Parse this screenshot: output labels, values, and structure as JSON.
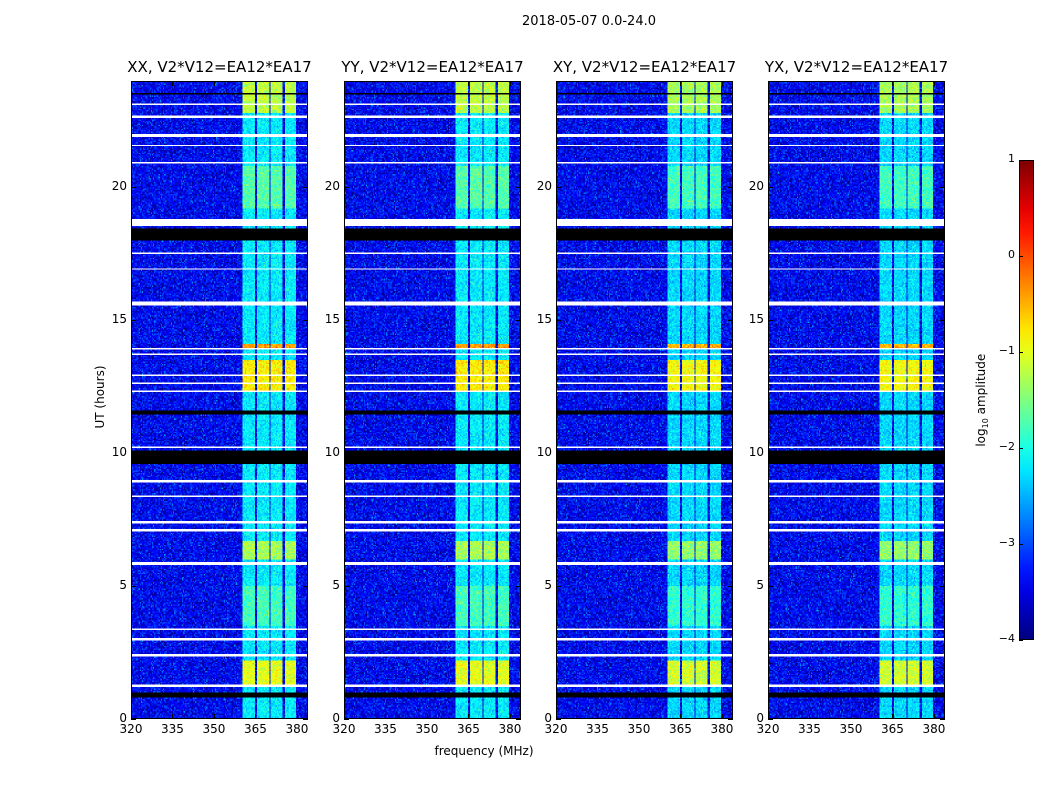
{
  "chart_data": {
    "type": "heatmap",
    "title": "2018-05-07 0.0-24.0",
    "xlabel": "frequency (MHz)",
    "ylabel": "UT (hours)",
    "xlim": [
      320,
      384
    ],
    "ylim": [
      0,
      24
    ],
    "xticks": [
      320,
      335,
      350,
      365,
      380
    ],
    "yticks": [
      0,
      5,
      10,
      15,
      20
    ],
    "colorbar": {
      "label": "log10 amplitude",
      "label_main": "log",
      "label_sub": "10",
      "label_rest": " amplitude",
      "range": [
        -4,
        1
      ],
      "ticks": [
        1,
        0,
        -1,
        -2,
        -3,
        -4
      ],
      "tick_labels": [
        "1",
        "0",
        "−1",
        "−2",
        "−3",
        "−4"
      ],
      "colormap": "jet"
    },
    "panels": [
      {
        "title": "XX, V2*V12=EA12*EA17"
      },
      {
        "title": "YY, V2*V12=EA12*EA17"
      },
      {
        "title": "XY, V2*V12=EA12*EA17"
      },
      {
        "title": "YX, V2*V12=EA12*EA17"
      }
    ],
    "background_level": -3.4,
    "bright_channel_blocks_mhz": [
      [
        360.5,
        365
      ],
      [
        365.7,
        370
      ],
      [
        370.4,
        374.8
      ],
      [
        375.5,
        379.5
      ]
    ],
    "bright_block_level": -2.2,
    "bright_time_ranges_hours": [
      {
        "range": [
          1.2,
          2.2
        ],
        "level": -1.0
      },
      {
        "range": [
          3.5,
          5.0
        ],
        "level": -1.8
      },
      {
        "range": [
          6.0,
          6.7
        ],
        "level": -1.3
      },
      {
        "range": [
          12.3,
          13.5
        ],
        "level": -0.8
      },
      {
        "range": [
          13.9,
          14.1
        ],
        "level": -0.4
      },
      {
        "range": [
          19.2,
          20.8
        ],
        "level": -1.7
      },
      {
        "range": [
          22.8,
          24.0
        ],
        "level": -1.2
      }
    ],
    "flagged_white_hours": [
      [
        1.2,
        1.3
      ],
      [
        2.35,
        2.45
      ],
      [
        2.95,
        3.05
      ],
      [
        3.35,
        3.42
      ],
      [
        5.82,
        5.88
      ],
      [
        7.05,
        7.15
      ],
      [
        7.35,
        7.45
      ],
      [
        8.35,
        8.42
      ],
      [
        8.9,
        9.0
      ],
      [
        10.18,
        10.25
      ],
      [
        12.28,
        12.34
      ],
      [
        12.58,
        12.64
      ],
      [
        12.88,
        12.94
      ],
      [
        13.68,
        13.74
      ],
      [
        13.88,
        13.94
      ],
      [
        15.55,
        15.68
      ],
      [
        16.9,
        16.95
      ],
      [
        17.5,
        17.55
      ],
      [
        18.55,
        18.78
      ],
      [
        20.88,
        20.94
      ],
      [
        21.55,
        21.6
      ],
      [
        21.92,
        21.98
      ],
      [
        22.58,
        22.72
      ],
      [
        23.08,
        23.14
      ]
    ],
    "flagged_black_hours": [
      [
        0.8,
        1.0
      ],
      [
        3.68,
        3.72
      ],
      [
        6.38,
        6.42
      ],
      [
        9.6,
        10.1
      ],
      [
        11.45,
        11.6
      ],
      [
        18.0,
        18.45
      ],
      [
        23.5,
        23.55
      ]
    ]
  }
}
